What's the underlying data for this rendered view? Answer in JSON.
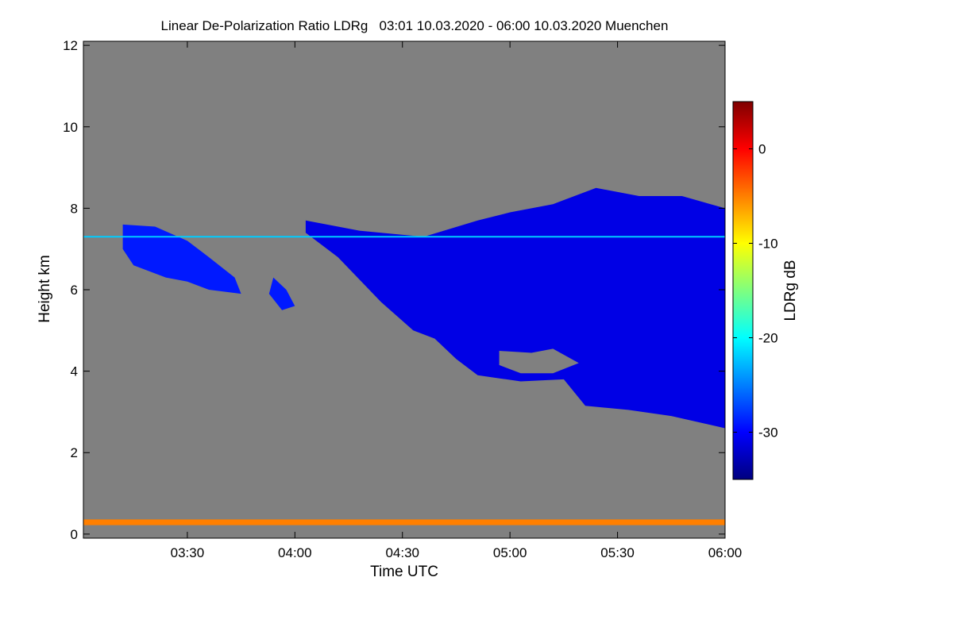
{
  "chart_data": {
    "type": "heatmap",
    "title": "Linear De-Polarization Ratio LDRg   03:01 10.03.2020 - 06:00 10.03.2020 Muenchen",
    "xlabel": "Time UTC",
    "ylabel": "Height km",
    "x_range_hours": [
      3.0167,
      6.0
    ],
    "y_range_km": [
      -0.1,
      12.1
    ],
    "x_ticks": [
      {
        "value": 3.5,
        "label": "03:30"
      },
      {
        "value": 4.0,
        "label": "04:00"
      },
      {
        "value": 4.5,
        "label": "04:30"
      },
      {
        "value": 5.0,
        "label": "05:00"
      },
      {
        "value": 5.5,
        "label": "05:30"
      },
      {
        "value": 6.0,
        "label": "06:00"
      }
    ],
    "y_ticks": [
      {
        "value": 0,
        "label": "0"
      },
      {
        "value": 2,
        "label": "2"
      },
      {
        "value": 4,
        "label": "4"
      },
      {
        "value": 6,
        "label": "6"
      },
      {
        "value": 8,
        "label": "8"
      },
      {
        "value": 10,
        "label": "10"
      },
      {
        "value": 12,
        "label": "12"
      }
    ],
    "colorbar": {
      "label": "LDRg dB",
      "range": [
        -35,
        5
      ],
      "ticks": [
        {
          "value": 0,
          "label": "0"
        },
        {
          "value": -10,
          "label": "-10"
        },
        {
          "value": -20,
          "label": "-20"
        },
        {
          "value": -30,
          "label": "-30"
        }
      ],
      "colors": [
        "#00007f",
        "#0000ff",
        "#007fff",
        "#00ffff",
        "#7fff7f",
        "#ffff00",
        "#ff7f00",
        "#ff0000",
        "#7f0000"
      ]
    },
    "background_color": "#808080",
    "features": {
      "main_cloud": {
        "ldr_db": -31,
        "top_km": [
          [
            4.05,
            7.7
          ],
          [
            4.3,
            7.45
          ],
          [
            4.6,
            7.3
          ],
          [
            4.85,
            7.7
          ],
          [
            5.0,
            7.9
          ],
          [
            5.2,
            8.1
          ],
          [
            5.4,
            8.5
          ],
          [
            5.6,
            8.3
          ],
          [
            5.8,
            8.3
          ],
          [
            6.0,
            8.0
          ]
        ],
        "base_km": [
          [
            4.05,
            7.4
          ],
          [
            4.2,
            6.8
          ],
          [
            4.4,
            5.7
          ],
          [
            4.55,
            5.0
          ],
          [
            4.65,
            4.8
          ],
          [
            4.75,
            4.3
          ],
          [
            4.85,
            3.9
          ],
          [
            5.05,
            3.75
          ],
          [
            5.25,
            3.8
          ],
          [
            5.35,
            3.15
          ],
          [
            5.55,
            3.05
          ],
          [
            5.75,
            2.9
          ],
          [
            6.0,
            2.6
          ]
        ],
        "gap_km": [
          [
            4.95,
            4.5
          ],
          [
            5.1,
            4.45
          ],
          [
            5.2,
            4.55
          ],
          [
            5.32,
            4.2
          ],
          [
            5.2,
            3.95
          ],
          [
            5.05,
            3.95
          ],
          [
            4.95,
            4.15
          ]
        ]
      },
      "early_cloud_patch": {
        "ldr_db": -29,
        "outline_km": [
          [
            3.2,
            7.6
          ],
          [
            3.35,
            7.55
          ],
          [
            3.5,
            7.2
          ],
          [
            3.6,
            6.8
          ],
          [
            3.72,
            6.3
          ],
          [
            3.75,
            5.9
          ],
          [
            3.6,
            6.0
          ],
          [
            3.5,
            6.2
          ],
          [
            3.4,
            6.3
          ],
          [
            3.25,
            6.6
          ],
          [
            3.2,
            7.0
          ]
        ]
      },
      "small_patch": {
        "ldr_db": -29,
        "outline_km": [
          [
            3.9,
            6.3
          ],
          [
            3.96,
            6.0
          ],
          [
            4.0,
            5.6
          ],
          [
            3.94,
            5.5
          ],
          [
            3.88,
            5.9
          ]
        ]
      },
      "noise_line": {
        "height_km": 7.3,
        "ldr_db": -22,
        "x_range_hours": [
          3.0167,
          6.0
        ]
      },
      "ground_layer": {
        "height_km": [
          0.22,
          0.36
        ],
        "ldr_db": -5
      }
    }
  }
}
